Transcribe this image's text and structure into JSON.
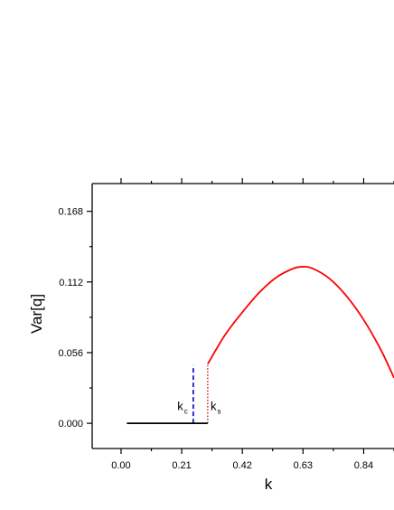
{
  "chart_data": {
    "type": "line",
    "title": "",
    "xlabel": "k",
    "ylabel": "Var[q]",
    "xlim": [
      -0.1,
      0.945
    ],
    "ylim": [
      -0.02,
      0.19
    ],
    "x_ticks": [
      "0.00",
      "0.21",
      "0.42",
      "0.63",
      "0.84"
    ],
    "x_tick_values": [
      0.0,
      0.21,
      0.42,
      0.63,
      0.84
    ],
    "y_ticks": [
      "0.000",
      "0.056",
      "0.112",
      "0.168"
    ],
    "y_tick_values": [
      0.0,
      0.056,
      0.112,
      0.168
    ],
    "grid": false,
    "series": [
      {
        "color": "#000000",
        "x": [
          0.02,
          0.3
        ],
        "y": [
          0.0,
          0.0
        ]
      },
      {
        "color": "#ff0000",
        "x": [
          0.3,
          0.36,
          0.42,
          0.48,
          0.54,
          0.6,
          0.63,
          0.66,
          0.72,
          0.78,
          0.84,
          0.9,
          0.945
        ],
        "y": [
          0.047,
          0.07,
          0.088,
          0.104,
          0.116,
          0.123,
          0.124,
          0.123,
          0.115,
          0.101,
          0.082,
          0.058,
          0.036
        ]
      }
    ],
    "vlines": [
      {
        "x": 0.25,
        "y0": 0.0,
        "y1": 0.046,
        "color": "#0000cc",
        "style": "dashed"
      },
      {
        "x": 0.3,
        "y0": 0.0,
        "y1": 0.046,
        "color": "#cc3333",
        "style": "dotted"
      }
    ],
    "annotations": [
      {
        "base": "k",
        "sub": "c",
        "x": 0.195,
        "y": 0.0105
      },
      {
        "base": "k",
        "sub": "s",
        "x": 0.31,
        "y": 0.0105
      }
    ]
  }
}
